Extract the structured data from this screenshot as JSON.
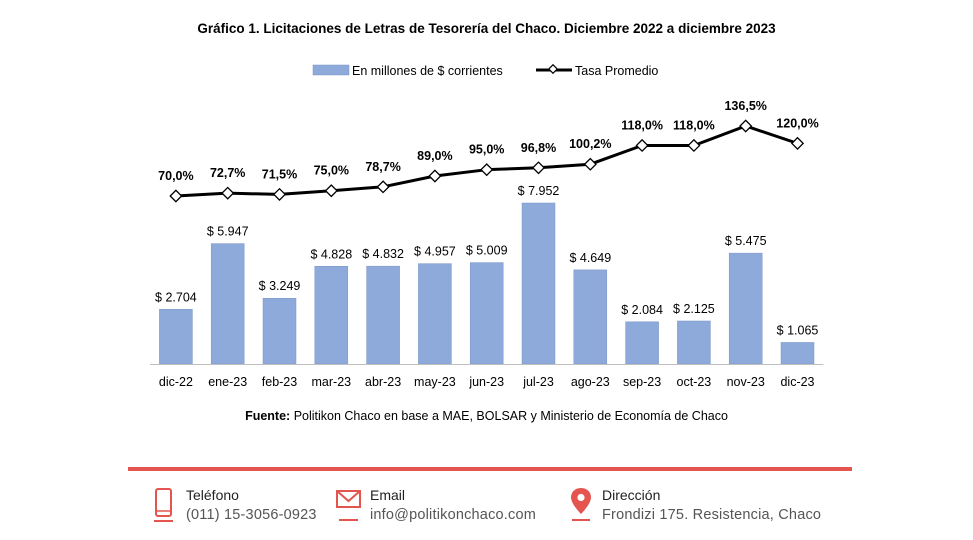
{
  "title_prefix": "Gráfico 1.",
  "title_rest": "Licitaciones de Letras de Tesorería del Chaco. Diciembre 2022 a diciembre 2023",
  "source_label": "Fuente:",
  "source_text": "Politikon Chaco en base a MAE, BOLSAR y Ministerio de Economía de Chaco",
  "chart_data": {
    "type": "bar",
    "title": "Gráfico 1. Licitaciones de Letras de Tesorería del Chaco. Diciembre 2022 a diciembre 2023",
    "categories": [
      "dic-22",
      "ene-23",
      "feb-23",
      "mar-23",
      "abr-23",
      "may-23",
      "jun-23",
      "jul-23",
      "ago-23",
      "sep-23",
      "oct-23",
      "nov-23",
      "dic-23"
    ],
    "series": [
      {
        "name": "En millones de $ corrientes",
        "type": "bar",
        "color": "#8eaadb",
        "values": [
          2704,
          5947,
          3249,
          4828,
          4832,
          4957,
          5009,
          7952,
          4649,
          2084,
          2125,
          5475,
          1065
        ],
        "labels": [
          "$ 2.704",
          "$ 5.947",
          "$ 3.249",
          "$ 4.828",
          "$ 4.832",
          "$ 4.957",
          "$ 5.009",
          "$ 7.952",
          "$ 4.649",
          "$ 2.084",
          "$ 2.125",
          "$ 5.475",
          "$ 1.065"
        ]
      },
      {
        "name": "Tasa Promedio",
        "type": "line",
        "color": "#000000",
        "values": [
          70.0,
          72.7,
          71.5,
          75.0,
          78.7,
          89.0,
          95.0,
          96.8,
          100.2,
          118.0,
          118.0,
          136.5,
          120.0
        ],
        "labels": [
          "70,0%",
          "72,7%",
          "71,5%",
          "75,0%",
          "78,7%",
          "89,0%",
          "95,0%",
          "96,8%",
          "100,2%",
          "118,0%",
          "118,0%",
          "136,5%",
          "120,0%"
        ]
      }
    ],
    "legend": "top-center",
    "grid": false
  },
  "footer": {
    "phone": {
      "label": "Teléfono",
      "value": "(011) 15-3056-0923"
    },
    "email": {
      "label": "Email",
      "value": "info@politikonchaco.com"
    },
    "address": {
      "label": "Dirección",
      "value": "Frondizi 175. Resistencia, Chaco"
    },
    "icon_color": "#e3554e"
  }
}
